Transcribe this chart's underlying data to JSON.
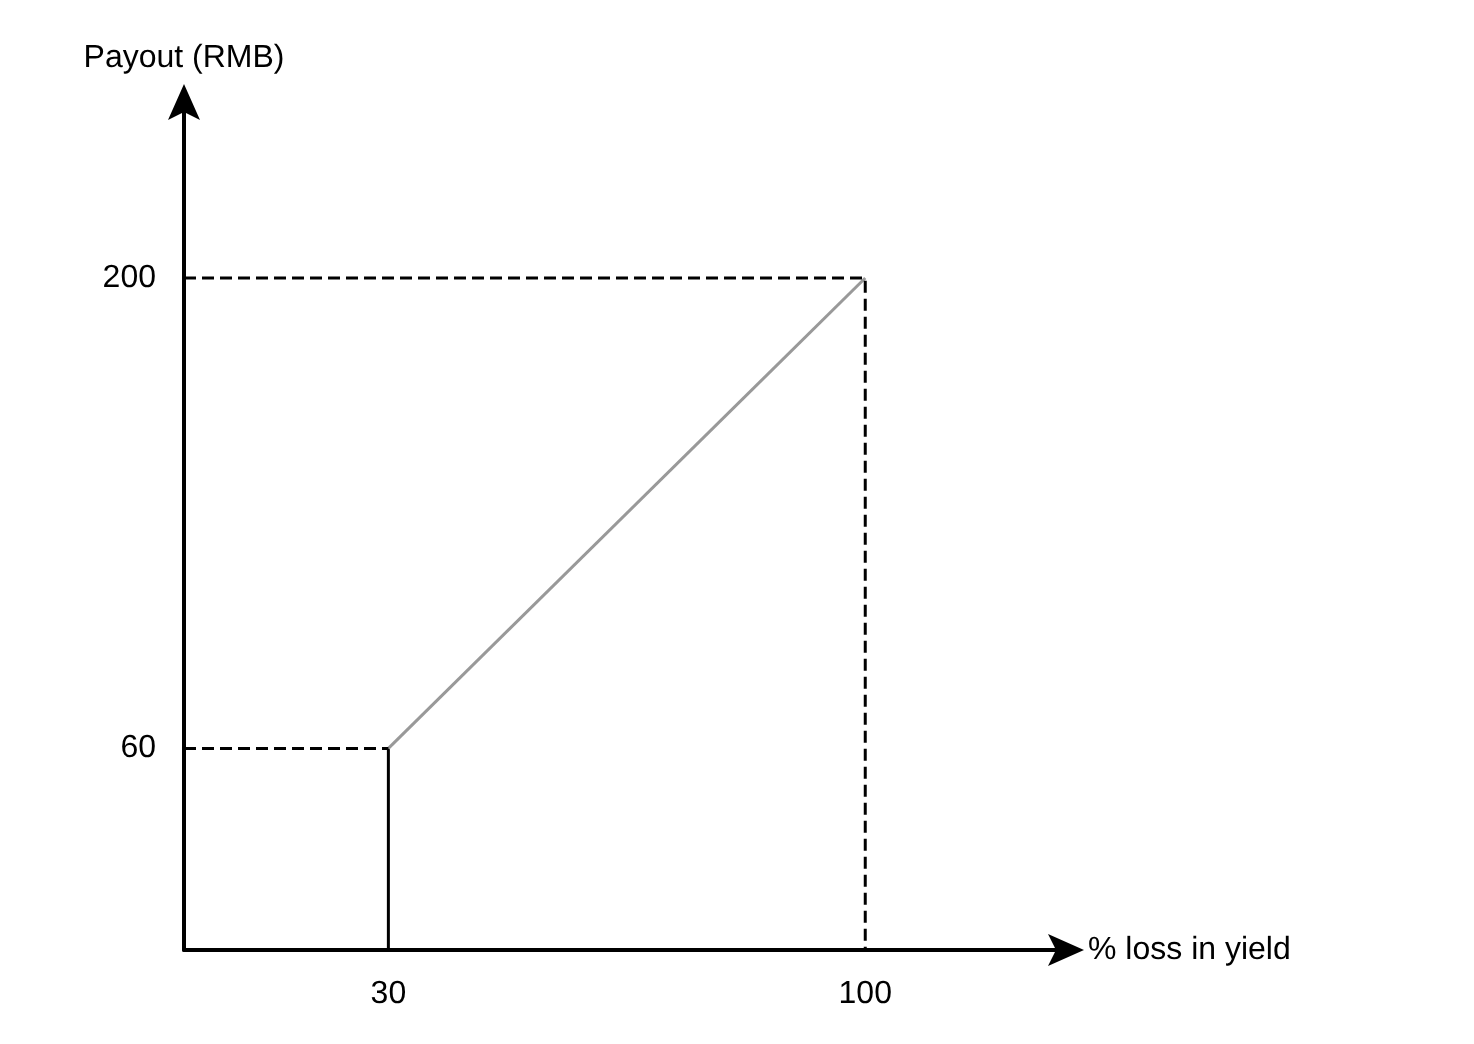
{
  "chart_data": {
    "type": "line",
    "xlabel": "% loss in yield",
    "ylabel": "Payout (RMB)",
    "xlim": [
      0,
      128
    ],
    "ylim": [
      0,
      250
    ],
    "xticks": [
      30,
      100
    ],
    "yticks": [
      60,
      200
    ],
    "grid": false,
    "marker": "none",
    "series": [
      {
        "x": [
          30,
          30
        ],
        "values": [
          0,
          60
        ],
        "color": "#000000",
        "line_style": "solid"
      },
      {
        "x": [
          30,
          100
        ],
        "values": [
          60,
          200
        ],
        "color": "#999999",
        "line_style": "solid"
      },
      {
        "x": [
          0,
          100,
          100
        ],
        "values": [
          200,
          200,
          0
        ],
        "color": "#000000",
        "line_style": "dashed"
      },
      {
        "x": [
          0,
          30
        ],
        "values": [
          60,
          60
        ],
        "color": "#000000",
        "line_style": "dashed"
      }
    ]
  }
}
